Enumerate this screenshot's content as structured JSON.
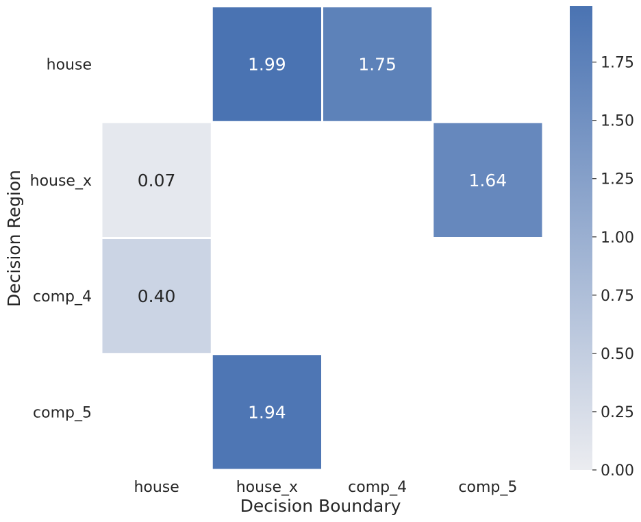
{
  "chart_data": {
    "type": "heatmap",
    "title": "",
    "xlabel": "Decision Boundary",
    "ylabel": "Decision Region",
    "x_categories": [
      "house",
      "house_x",
      "comp_4",
      "comp_5"
    ],
    "y_categories": [
      "house",
      "house_x",
      "comp_4",
      "comp_5"
    ],
    "values": [
      [
        null,
        1.99,
        1.75,
        null
      ],
      [
        0.07,
        null,
        null,
        1.64
      ],
      [
        0.4,
        null,
        null,
        null
      ],
      [
        null,
        1.94,
        null,
        null
      ]
    ],
    "cell_labels": [
      [
        "",
        "1.99",
        "1.75",
        ""
      ],
      [
        "0.07",
        "",
        "",
        "1.64"
      ],
      [
        "0.40",
        "",
        "",
        ""
      ],
      [
        "",
        "1.94",
        "",
        ""
      ]
    ],
    "colorbar": {
      "vmin": 0.0,
      "vmax": 1.99,
      "ticks": [
        0.0,
        0.25,
        0.5,
        0.75,
        1.0,
        1.25,
        1.5,
        1.75
      ],
      "tick_labels": [
        "0.00",
        "0.25",
        "0.50",
        "0.75",
        "1.00",
        "1.25",
        "1.50",
        "1.75"
      ]
    },
    "colors": {
      "low": "#ebecf0",
      "high": "#4a73b2",
      "text_dark": "#262626",
      "text_light": "#ffffff",
      "cell_border": "#ffffff"
    },
    "grid": false,
    "legend": "colorbar-right"
  }
}
